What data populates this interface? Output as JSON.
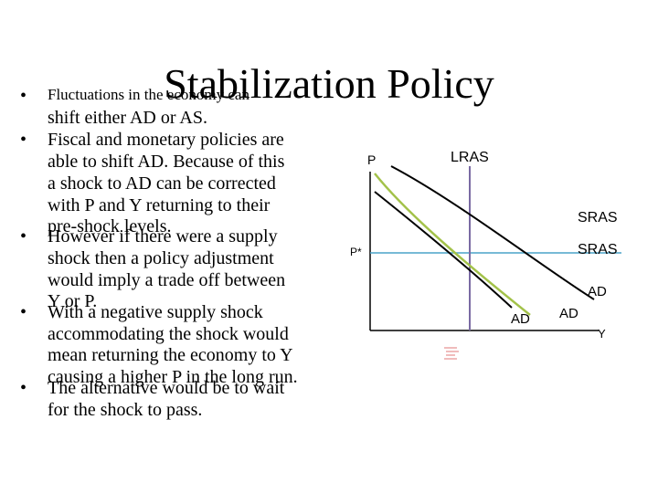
{
  "slide": {
    "title": "Stabilization Policy",
    "bullets": [
      {
        "first_line": "Fluctuations in the economy can",
        "lines": [
          "shift either AD or AS."
        ]
      },
      {
        "first_line": "Fiscal and monetary policies are",
        "lines": [
          "able to shift AD.  Because of this",
          "a shock to AD can be corrected",
          "with P and Y returning to their",
          "pre-shock levels."
        ]
      },
      {
        "first_line": "However if there were a supply",
        "lines": [
          "shock then a policy adjustment",
          "would imply a trade off between",
          "Y or P."
        ]
      },
      {
        "first_line": "With a negative supply shock",
        "lines": [
          "accommodating the shock would",
          "mean returning the economy to Y",
          "causing a higher P in the long run."
        ]
      },
      {
        "first_line": "The alternative would be to wait",
        "lines": [
          "for the shock to pass."
        ]
      }
    ]
  },
  "diagram": {
    "axis_p": "P",
    "axis_y": "Y",
    "price_level": "P*",
    "lras": "LRAS",
    "sras_1": "SRAS",
    "sras_2": "SRAS",
    "ad_1": "AD",
    "ad_2": "AD",
    "ad_3": "AD",
    "colors": {
      "lras_line": "#7a6aa3",
      "sras_curve": "#a3c24a",
      "p_star_line": "#4aa3c8",
      "ad_curve": "#000000",
      "axis": "#000000"
    }
  }
}
